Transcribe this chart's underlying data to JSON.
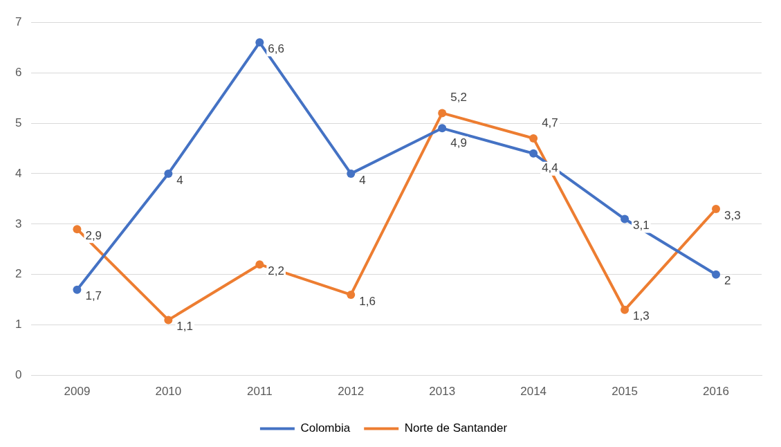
{
  "chart_data": {
    "type": "line",
    "categories": [
      "2009",
      "2010",
      "2011",
      "2012",
      "2013",
      "2014",
      "2015",
      "2016"
    ],
    "series": [
      {
        "name": "Colombia",
        "color": "#4472c4",
        "values": [
          1.7,
          4,
          6.6,
          4,
          4.9,
          4.4,
          3.1,
          2
        ],
        "value_labels": [
          "1,7",
          "4",
          "6,6",
          "4",
          "4,9",
          "4,4",
          "3,1",
          "2"
        ]
      },
      {
        "name": "Norte de Santander",
        "color": "#ed7d31",
        "values": [
          2.9,
          1.1,
          2.2,
          1.6,
          5.2,
          4.7,
          1.3,
          3.3
        ],
        "value_labels": [
          "2,9",
          "1,1",
          "2,2",
          "1,6",
          "5,2",
          "4,7",
          "1,3",
          "3,3"
        ]
      }
    ],
    "ylim": [
      0,
      7
    ],
    "yticks": [
      0,
      1,
      2,
      3,
      4,
      5,
      6,
      7
    ],
    "grid": "y",
    "legend": "bottom",
    "marker": "circle",
    "line_style": "solid"
  }
}
